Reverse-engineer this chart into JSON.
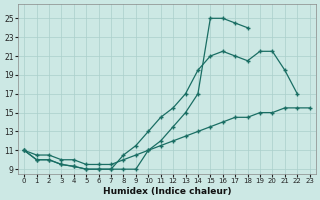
{
  "xlabel": "Humidex (Indice chaleur)",
  "bg_color": "#cce8e4",
  "line_color": "#1a6e64",
  "grid_color": "#aacfcb",
  "curve1_x": [
    0,
    1,
    2,
    3,
    4,
    5,
    6,
    7,
    8,
    9,
    10,
    11,
    12,
    13,
    14,
    15,
    16,
    17,
    18
  ],
  "curve1_y": [
    11,
    10,
    10,
    9.5,
    9.3,
    9.0,
    9.0,
    9.0,
    9.0,
    9.0,
    11.0,
    12.0,
    13.5,
    15.0,
    17.0,
    25.0,
    25.0,
    24.5,
    24.0
  ],
  "curve2_x": [
    0,
    1,
    2,
    3,
    4,
    5,
    6,
    7,
    8,
    9,
    10,
    11,
    12,
    13,
    14,
    15,
    16,
    17,
    18,
    19,
    20,
    21,
    22
  ],
  "curve2_y": [
    11,
    10,
    10,
    9.5,
    9.3,
    9.0,
    9.0,
    9.0,
    10.5,
    11.5,
    13.0,
    14.5,
    15.5,
    17.0,
    19.5,
    21.0,
    21.5,
    21.0,
    20.5,
    21.5,
    21.5,
    19.5,
    17.0
  ],
  "curve3_x": [
    0,
    1,
    2,
    3,
    4,
    5,
    6,
    7,
    8,
    9,
    10,
    11,
    12,
    13,
    14,
    15,
    16,
    17,
    18,
    19,
    20,
    21,
    22,
    23
  ],
  "curve3_y": [
    11,
    10.5,
    10.5,
    10.0,
    10.0,
    9.5,
    9.5,
    9.5,
    10.0,
    10.5,
    11.0,
    11.5,
    12.0,
    12.5,
    13.0,
    13.5,
    14.0,
    14.5,
    14.5,
    15.0,
    15.0,
    15.5,
    15.5,
    15.5
  ],
  "xlim": [
    -0.5,
    23.5
  ],
  "ylim": [
    8.5,
    26.5
  ],
  "yticks": [
    9,
    11,
    13,
    15,
    17,
    19,
    21,
    23,
    25
  ],
  "xticks": [
    0,
    1,
    2,
    3,
    4,
    5,
    6,
    7,
    8,
    9,
    10,
    11,
    12,
    13,
    14,
    15,
    16,
    17,
    18,
    19,
    20,
    21,
    22,
    23
  ]
}
